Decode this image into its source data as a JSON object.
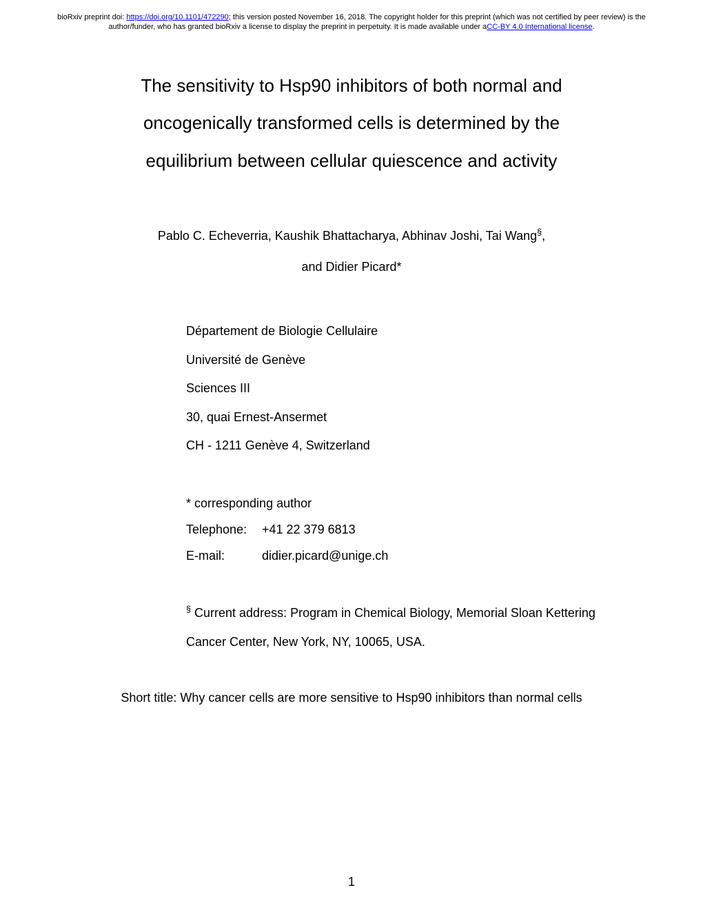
{
  "header": {
    "prefix": "bioRxiv preprint doi: ",
    "doi_url": "https://doi.org/10.1101/472290",
    "mid1": "; this version posted November 16, 2018. The copyright holder for this preprint (which was not certified by peer review) is the author/funder, who has granted bioRxiv a license to display the preprint in perpetuity. It is made available under a",
    "license_text": "CC-BY 4.0 International license",
    "suffix": "."
  },
  "title": {
    "line1": "The sensitivity to Hsp90 inhibitors of both normal and",
    "line2": "oncogenically transformed cells is determined by the",
    "line3": "equilibrium between cellular quiescence and activity"
  },
  "authors": {
    "line1_before": "Pablo C. Echeverria, Kaushik Bhattacharya, Abhinav Joshi, Tai Wang",
    "line1_sup": "§",
    "line1_after": ",",
    "line2": "and Didier Picard*"
  },
  "affiliation": {
    "line1": "Département de Biologie Cellulaire",
    "line2": "Université de Genève",
    "line3": "Sciences III",
    "line4": "30, quai Ernest-Ansermet",
    "line5": "CH - 1211 Genève 4, Switzerland"
  },
  "corresponding": {
    "label": "* corresponding author",
    "phone_label": "Telephone:",
    "phone_value": "+41 22 379 6813",
    "email_label": "E-mail:",
    "email_value": "didier.picard@unige.ch"
  },
  "current_address": {
    "sup": "§",
    "text": " Current address: Program in Chemical Biology, Memorial Sloan Kettering Cancer Center, New York, NY, 10065, USA."
  },
  "short_title": "Short title: Why cancer cells are more sensitive to Hsp90 inhibitors than normal cells",
  "page_number": "1"
}
